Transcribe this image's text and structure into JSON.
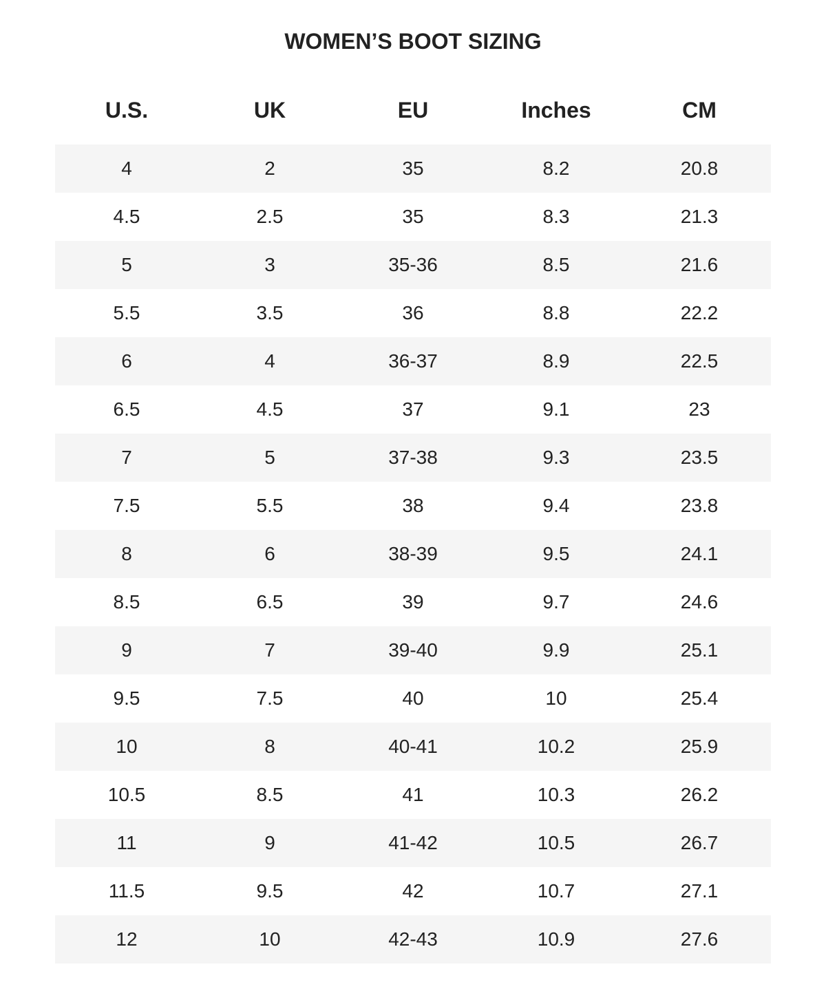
{
  "title": "WOMEN’S BOOT SIZING",
  "colors": {
    "text": "#222222",
    "stripe": "#f5f5f5",
    "background": "#ffffff"
  },
  "table": {
    "headers": [
      "U.S.",
      "UK",
      "EU",
      "Inches",
      "CM"
    ],
    "rows": [
      [
        "4",
        "2",
        "35",
        "8.2",
        "20.8"
      ],
      [
        "4.5",
        "2.5",
        "35",
        "8.3",
        "21.3"
      ],
      [
        "5",
        "3",
        "35-36",
        "8.5",
        "21.6"
      ],
      [
        "5.5",
        "3.5",
        "36",
        "8.8",
        "22.2"
      ],
      [
        "6",
        "4",
        "36-37",
        "8.9",
        "22.5"
      ],
      [
        "6.5",
        "4.5",
        "37",
        "9.1",
        "23"
      ],
      [
        "7",
        "5",
        "37-38",
        "9.3",
        "23.5"
      ],
      [
        "7.5",
        "5.5",
        "38",
        "9.4",
        "23.8"
      ],
      [
        "8",
        "6",
        "38-39",
        "9.5",
        "24.1"
      ],
      [
        "8.5",
        "6.5",
        "39",
        "9.7",
        "24.6"
      ],
      [
        "9",
        "7",
        "39-40",
        "9.9",
        "25.1"
      ],
      [
        "9.5",
        "7.5",
        "40",
        "10",
        "25.4"
      ],
      [
        "10",
        "8",
        "40-41",
        "10.2",
        "25.9"
      ],
      [
        "10.5",
        "8.5",
        "41",
        "10.3",
        "26.2"
      ],
      [
        "11",
        "9",
        "41-42",
        "10.5",
        "26.7"
      ],
      [
        "11.5",
        "9.5",
        "42",
        "10.7",
        "27.1"
      ],
      [
        "12",
        "10",
        "42-43",
        "10.9",
        "27.6"
      ]
    ]
  }
}
